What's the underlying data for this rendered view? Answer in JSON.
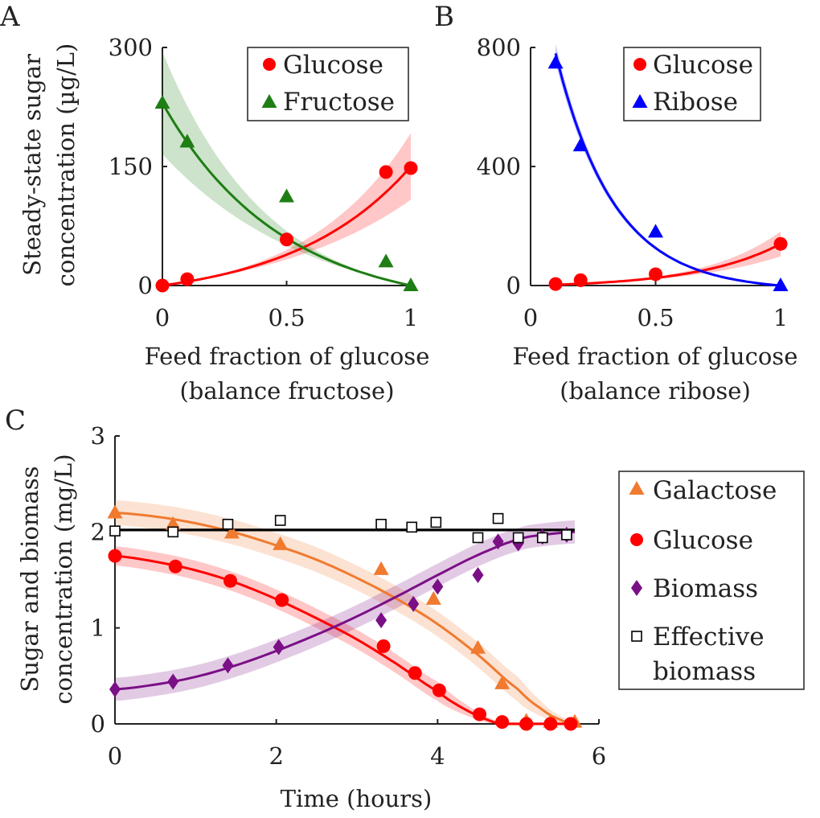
{
  "colors": {
    "glucose": "#ff0000",
    "fructose": "#1e7e14",
    "ribose": "#0000ff",
    "galactose": "#f07a30",
    "biomass": "#7b0f86",
    "effective": "#000000"
  },
  "chart_data": [
    {
      "panel": "A",
      "type": "scatter",
      "xlabel_lines": [
        "Feed fraction of glucose",
        "(balance fructose)"
      ],
      "ylabel_lines": [
        "Steady-state sugar",
        "concentration (µg/L)"
      ],
      "xlim": [
        0,
        1
      ],
      "ylim": [
        0,
        300
      ],
      "xticks": [
        0,
        0.5,
        1
      ],
      "xtick_labels": [
        "0",
        "0.5",
        "1"
      ],
      "yticks": [
        0,
        150,
        300
      ],
      "ytick_labels": [
        "0",
        "150",
        "300"
      ],
      "legend_position": "top-right",
      "series": [
        {
          "name": "Glucose",
          "marker": "circle",
          "color": "#ff0000",
          "x": [
            0,
            0.1,
            0.5,
            0.9,
            1.0
          ],
          "y": [
            0,
            8,
            58,
            143,
            148
          ],
          "fit": {
            "kind": "exp",
            "a": 150,
            "b": 2.1,
            "x0": 0,
            "x1": 1,
            "band_rel": [
              0.03,
              0.28
            ]
          }
        },
        {
          "name": "Fructose",
          "marker": "triangle",
          "color": "#1e7e14",
          "x": [
            0,
            0.1,
            0.5,
            0.9,
            1.0
          ],
          "y": [
            230,
            181,
            112,
            30,
            0
          ],
          "fit": {
            "kind": "exp",
            "a": 230,
            "b": 2.1,
            "reverse": true,
            "x0": 0,
            "x1": 1,
            "band_rel": [
              0.28,
              0.03
            ]
          }
        }
      ]
    },
    {
      "panel": "B",
      "type": "scatter",
      "xlabel_lines": [
        "Feed fraction of glucose",
        "(balance ribose)"
      ],
      "ylabel_lines": [],
      "xlim": [
        0,
        1
      ],
      "ylim": [
        0,
        800
      ],
      "xticks": [
        0,
        0.5,
        1
      ],
      "xtick_labels": [
        "0",
        "0.5",
        "1"
      ],
      "yticks": [
        0,
        400,
        800
      ],
      "ytick_labels": [
        "0",
        "400",
        "800"
      ],
      "legend_position": "top-right",
      "series": [
        {
          "name": "Glucose",
          "marker": "circle",
          "color": "#ff0000",
          "x": [
            0.1,
            0.2,
            0.5,
            1.0
          ],
          "y": [
            5,
            18,
            38,
            140
          ],
          "fit": {
            "kind": "exp",
            "a": 140,
            "b": 3.0,
            "x0": 0.1,
            "x1": 1,
            "band_rel": [
              0.05,
              0.3
            ]
          }
        },
        {
          "name": "Ribose",
          "marker": "triangle",
          "color": "#0000ff",
          "x": [
            0.1,
            0.2,
            0.5,
            1.0
          ],
          "y": [
            748,
            470,
            180,
            0
          ],
          "fit": {
            "kind": "exp",
            "a": 780,
            "b": 4.3,
            "reverse": true,
            "x0": 0.1,
            "x1": 1,
            "band_rel": [
              0.04,
              0.04
            ]
          }
        }
      ]
    },
    {
      "panel": "C",
      "type": "scatter",
      "xlabel_lines": [
        "Time (hours)"
      ],
      "ylabel_lines": [
        "Sugar and biomass",
        "concentration (mg/L)"
      ],
      "xlim": [
        0,
        6
      ],
      "ylim": [
        0,
        3
      ],
      "xticks": [
        0,
        2,
        4,
        6
      ],
      "xtick_labels": [
        "0",
        "2",
        "4",
        "6"
      ],
      "yticks": [
        0,
        1,
        2,
        3
      ],
      "ytick_labels": [
        "0",
        "1",
        "2",
        "3"
      ],
      "legend_position": "right-outside",
      "series": [
        {
          "name": "Galactose",
          "marker": "triangle",
          "color": "#f07a30",
          "x": [
            0,
            0.72,
            1.45,
            2.05,
            3.3,
            3.95,
            4.5,
            4.8,
            5.1,
            5.4,
            5.7
          ],
          "y": [
            2.2,
            2.08,
            1.99,
            1.87,
            1.61,
            1.3,
            0.79,
            0.42,
            0.03,
            0.02,
            0.02
          ],
          "fit": {
            "kind": "points",
            "x": [
              0,
              0.5,
              1,
              1.5,
              2,
              2.5,
              3,
              3.5,
              4,
              4.5,
              5,
              5.3,
              5.5,
              5.7
            ],
            "y": [
              2.2,
              2.16,
              2.09,
              1.99,
              1.86,
              1.71,
              1.52,
              1.3,
              1.04,
              0.72,
              0.36,
              0.15,
              0.05,
              0.0
            ],
            "band": 0.13
          }
        },
        {
          "name": "Glucose",
          "marker": "circle",
          "color": "#ff0000",
          "x": [
            0,
            0.75,
            1.43,
            2.07,
            3.33,
            3.72,
            4.02,
            4.52,
            4.8,
            5.1,
            5.4,
            5.65
          ],
          "y": [
            1.75,
            1.64,
            1.49,
            1.29,
            0.81,
            0.53,
            0.35,
            0.1,
            0.02,
            0.0,
            0.0,
            0.0
          ],
          "fit": {
            "kind": "points",
            "x": [
              0,
              0.5,
              1,
              1.5,
              2,
              2.5,
              3,
              3.5,
              4,
              4.3,
              4.6,
              4.8,
              5.0,
              5.7
            ],
            "y": [
              1.75,
              1.69,
              1.6,
              1.47,
              1.3,
              1.1,
              0.88,
              0.62,
              0.34,
              0.17,
              0.05,
              0.0,
              0.0,
              0.0
            ],
            "band": 0.1
          }
        },
        {
          "name": "Biomass",
          "marker": "diamond",
          "color": "#7b0f86",
          "x": [
            0,
            0.72,
            1.4,
            2.03,
            3.3,
            3.7,
            4.0,
            4.5,
            4.75,
            5.0,
            5.3,
            5.6
          ],
          "y": [
            0.36,
            0.44,
            0.61,
            0.8,
            1.08,
            1.25,
            1.43,
            1.55,
            1.9,
            1.88,
            1.95,
            1.97
          ],
          "fit": {
            "kind": "points",
            "x": [
              0,
              0.5,
              1,
              1.5,
              2,
              2.5,
              3,
              3.5,
              4,
              4.5,
              5,
              5.3,
              5.7
            ],
            "y": [
              0.36,
              0.41,
              0.49,
              0.61,
              0.76,
              0.93,
              1.12,
              1.33,
              1.55,
              1.76,
              1.92,
              1.97,
              2.0
            ],
            "band": 0.12
          }
        },
        {
          "name": "Effective biomass",
          "legend_lines": [
            "Effective",
            "biomass"
          ],
          "marker": "square",
          "color": "#000000",
          "x": [
            0,
            0.72,
            1.4,
            2.05,
            3.3,
            3.68,
            3.98,
            4.5,
            4.75,
            5.0,
            5.3,
            5.6
          ],
          "y": [
            2.01,
            2.0,
            2.08,
            2.12,
            2.08,
            2.05,
            2.1,
            1.94,
            2.14,
            1.94,
            1.94,
            1.97
          ],
          "fit": {
            "kind": "points",
            "x": [
              0,
              5.7
            ],
            "y": [
              2.02,
              2.02
            ],
            "band": 0
          }
        }
      ]
    }
  ]
}
